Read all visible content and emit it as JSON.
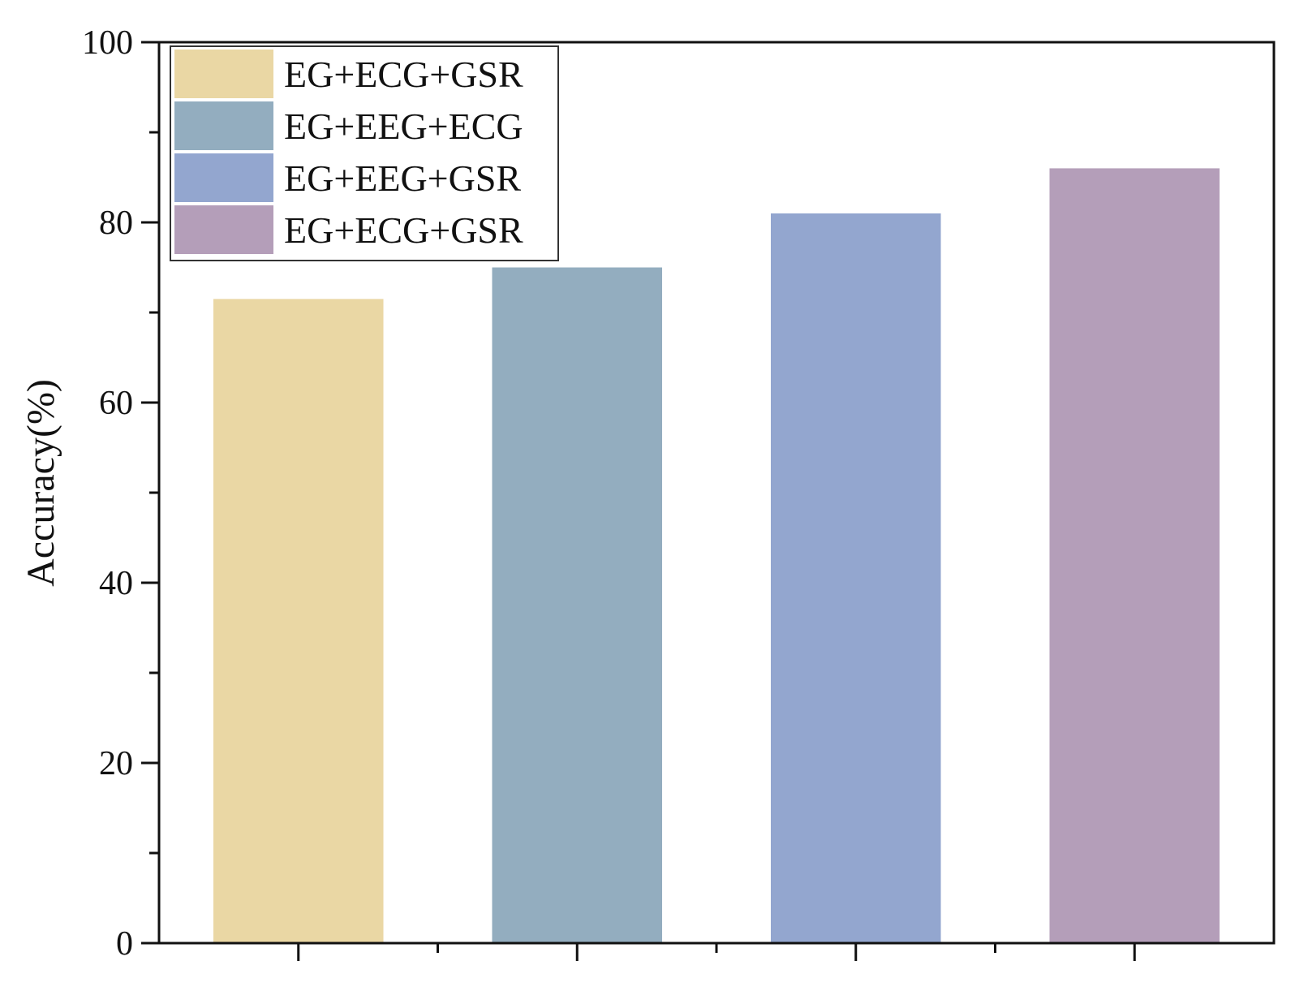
{
  "chart_data": {
    "type": "bar",
    "title": "",
    "xlabel": "",
    "ylabel": "Accuracy(%)",
    "ylim": [
      0,
      100
    ],
    "yticks": [
      0,
      20,
      40,
      60,
      80,
      100
    ],
    "yticks_minor": [
      10,
      30,
      50,
      70,
      90
    ],
    "grid": false,
    "legend_position": "top-left",
    "categories": [
      "EG+ECG+GSR",
      "EG+EEG+ECG",
      "EG+EEG+GSR",
      "EG+ECG+GSR"
    ],
    "values": [
      71.5,
      75.0,
      81.0,
      86.0
    ],
    "colors": [
      "#EAD7A4",
      "#93ADBF",
      "#93A6CF",
      "#B49EB9"
    ]
  }
}
